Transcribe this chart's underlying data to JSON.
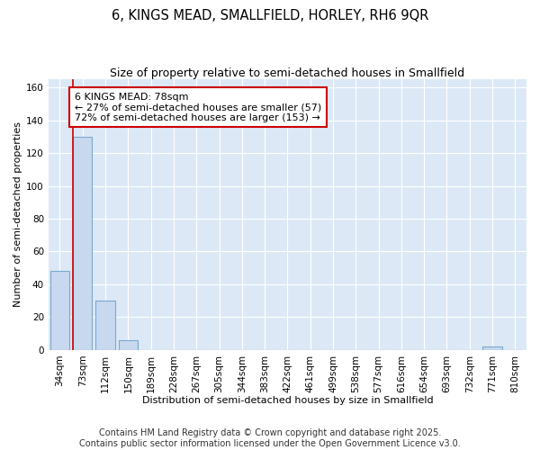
{
  "title": "6, KINGS MEAD, SMALLFIELD, HORLEY, RH6 9QR",
  "subtitle": "Size of property relative to semi-detached houses in Smallfield",
  "xlabel": "Distribution of semi-detached houses by size in Smallfield",
  "ylabel": "Number of semi-detached properties",
  "categories": [
    "34sqm",
    "73sqm",
    "112sqm",
    "150sqm",
    "189sqm",
    "228sqm",
    "267sqm",
    "305sqm",
    "344sqm",
    "383sqm",
    "422sqm",
    "461sqm",
    "499sqm",
    "538sqm",
    "577sqm",
    "616sqm",
    "654sqm",
    "693sqm",
    "732sqm",
    "771sqm",
    "810sqm"
  ],
  "bar_values": [
    48,
    130,
    30,
    6,
    0,
    0,
    0,
    0,
    0,
    0,
    0,
    0,
    0,
    0,
    0,
    0,
    0,
    0,
    0,
    2,
    0
  ],
  "bar_color": "#c8d8ee",
  "bar_edge_color": "#7aaad0",
  "bar_linewidth": 0.8,
  "red_line_color": "#cc0000",
  "annotation_text": "6 KINGS MEAD: 78sqm\n← 27% of semi-detached houses are smaller (57)\n72% of semi-detached houses are larger (153) →",
  "ylim": [
    0,
    165
  ],
  "yticks": [
    0,
    20,
    40,
    60,
    80,
    100,
    120,
    140,
    160
  ],
  "fig_bg_color": "#ffffff",
  "plot_bg_color": "#dce8f5",
  "grid_color": "#ffffff",
  "title_fontsize": 10.5,
  "subtitle_fontsize": 9,
  "axis_fontsize": 8,
  "tick_fontsize": 7.5,
  "annot_fontsize": 8,
  "footer_text": "Contains HM Land Registry data © Crown copyright and database right 2025.\nContains public sector information licensed under the Open Government Licence v3.0.",
  "footer_fontsize": 7
}
